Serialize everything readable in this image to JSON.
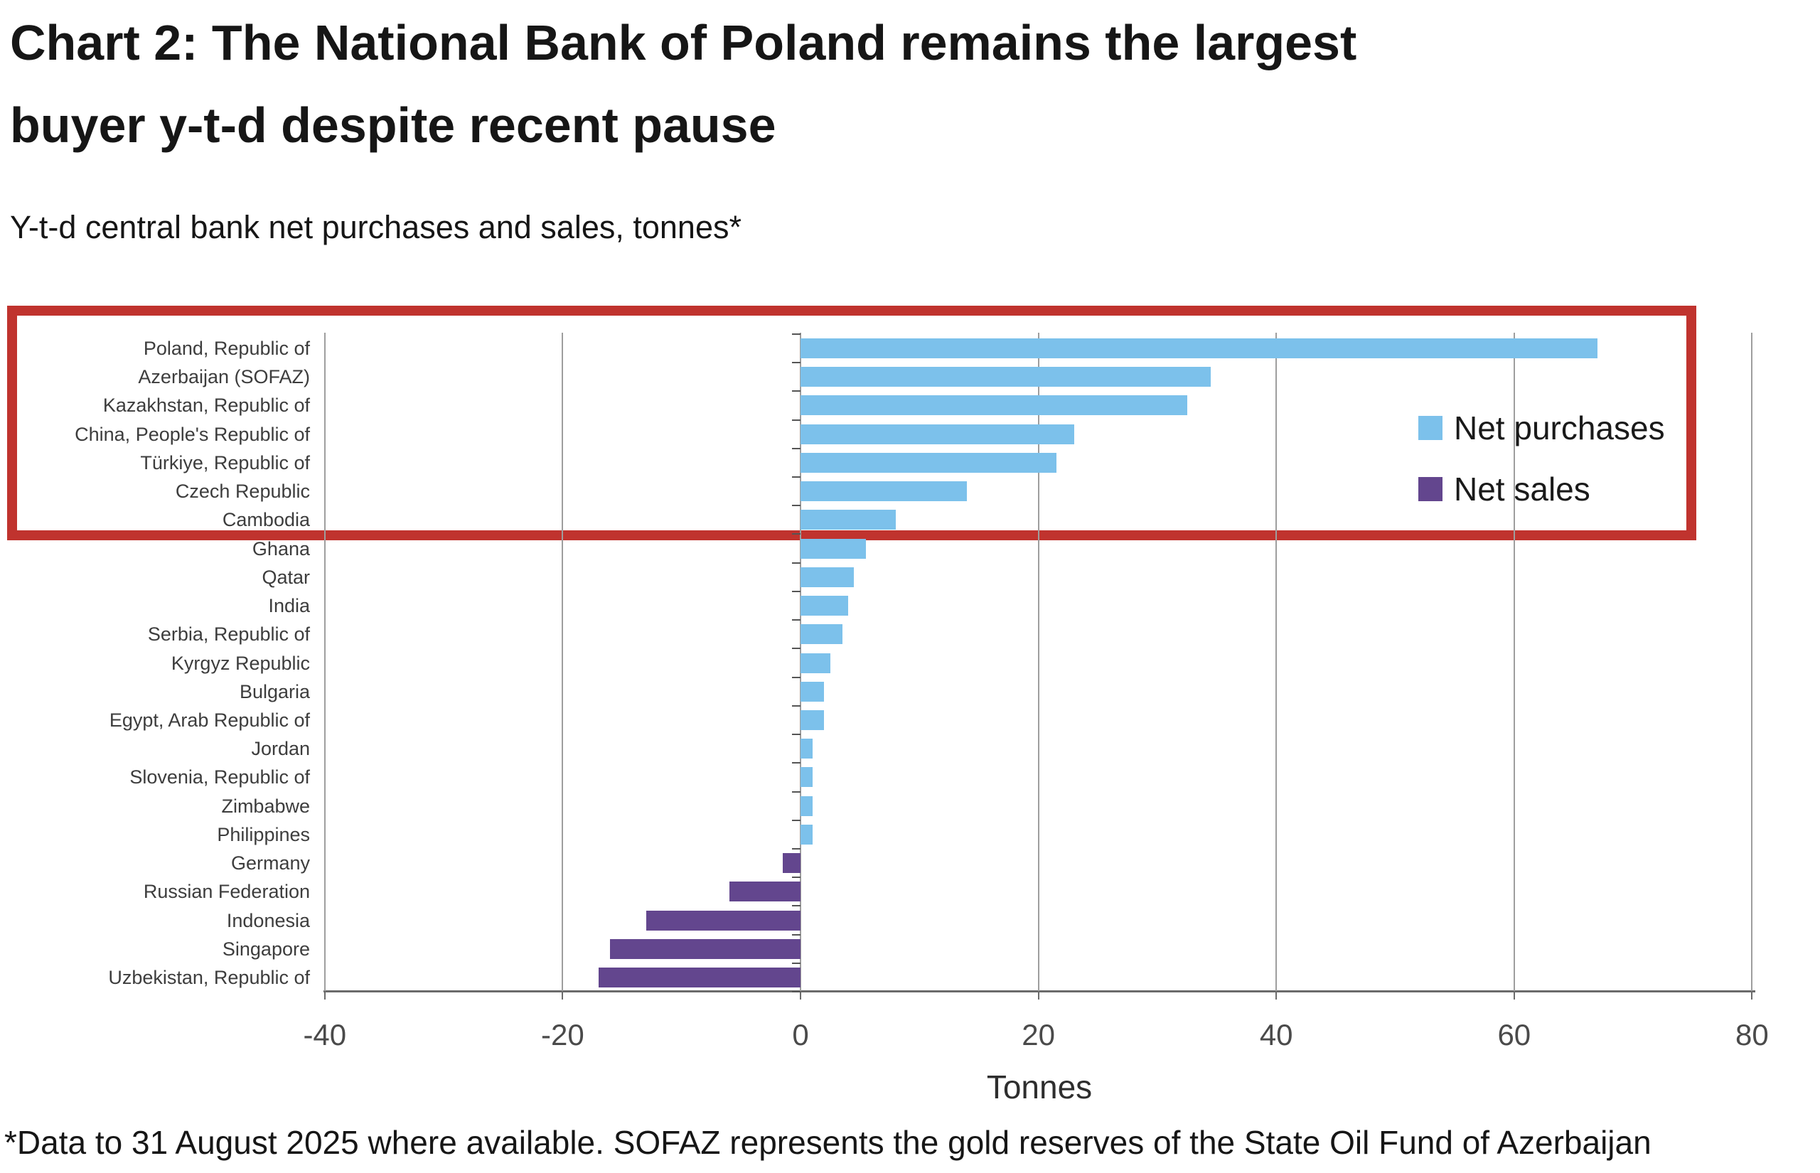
{
  "title": {
    "line1": "Chart 2: The National Bank of Poland remains the largest",
    "line2": "buyer y-t-d despite recent pause"
  },
  "subtitle": "Y-t-d central bank net purchases and sales, tonnes*",
  "footnote": "*Data to 31 August 2025 where available. SOFAZ represents the gold reserves of the State Oil Fund of Azerbaijan",
  "legend": {
    "purchases_label": "Net purchases",
    "sales_label": "Net sales"
  },
  "colors": {
    "purchases": "#7cc1eb",
    "sales": "#63468e",
    "annotation_box": "#c0332e",
    "gridline": "#9e9e9e",
    "axis": "#6b6b6b"
  },
  "chart_data": {
    "type": "bar",
    "orientation": "horizontal",
    "title": "Y-t-d central bank net purchases and sales, tonnes*",
    "xlabel": "Tonnes",
    "xlim": [
      -40,
      80
    ],
    "xticks": [
      -40,
      -20,
      0,
      20,
      40,
      60,
      80
    ],
    "grid": true,
    "legend_position": "center-right",
    "series_rule": "positive values = Net purchases (blue), negative values = Net sales (purple)",
    "categories": [
      "Poland, Republic of",
      "Azerbaijan (SOFAZ)",
      "Kazakhstan, Republic of",
      "China, People's Republic of",
      "Türkiye, Republic of",
      "Czech Republic",
      "Cambodia",
      "Ghana",
      "Qatar",
      "India",
      "Serbia, Republic of",
      "Kyrgyz Republic",
      "Bulgaria",
      "Egypt, Arab Republic of",
      "Jordan",
      "Slovenia, Republic of",
      "Zimbabwe",
      "Philippines",
      "Germany",
      "Russian Federation",
      "Indonesia",
      "Singapore",
      "Uzbekistan, Republic of"
    ],
    "values": [
      67,
      34.5,
      32.5,
      23,
      21.5,
      14,
      8,
      5.5,
      4.5,
      4,
      3.5,
      2.5,
      2,
      2,
      1,
      1,
      1,
      1,
      -1.5,
      -6,
      -13,
      -16,
      -17
    ],
    "annotation": {
      "type": "red-highlight-box",
      "rows_highlighted": [
        "Poland, Republic of",
        "Azerbaijan (SOFAZ)",
        "Kazakhstan, Republic of",
        "China, People's Republic of",
        "Türkiye, Republic of",
        "Czech Republic",
        "Cambodia"
      ]
    }
  }
}
